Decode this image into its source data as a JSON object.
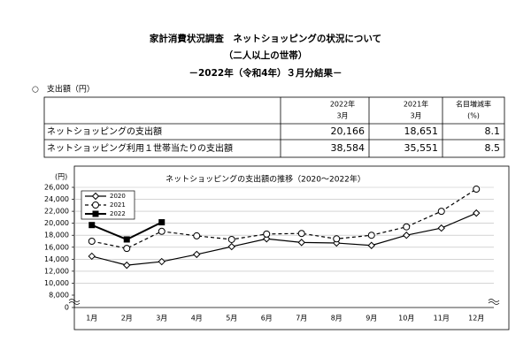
{
  "header": {
    "title": "家計消費状況調査　ネットショッピングの状況について",
    "subtitle": "（二人以上の世帯）",
    "period": "－2022年（令和4年）３月分結果－"
  },
  "section_label": "○　支出額（円）",
  "table": {
    "columns": [
      {
        "year": "2022年",
        "month": "3月"
      },
      {
        "year": "2021年",
        "month": "3月"
      },
      {
        "label": "名目増減率",
        "unit": "(%)"
      }
    ],
    "rows": [
      [
        "ネットショッピングの支出額",
        "20,166",
        "18,651",
        "8.1"
      ],
      [
        "ネットショッピング利用１世帯当たりの支出額",
        "38,584",
        "35,551",
        "8.5"
      ]
    ]
  },
  "chart_data": {
    "type": "line",
    "title": "ネットショッピングの支出額の推移（2020～2022年）",
    "y_unit": "(円)",
    "categories": [
      "1月",
      "2月",
      "3月",
      "4月",
      "5月",
      "6月",
      "7月",
      "8月",
      "9月",
      "10月",
      "11月",
      "12月"
    ],
    "series": [
      {
        "name": "2020",
        "color": "#000000",
        "dash": false,
        "marker": "diamond",
        "values": [
          14500,
          13000,
          13600,
          14800,
          16100,
          17400,
          16800,
          16700,
          16300,
          18000,
          19200,
          21700
        ]
      },
      {
        "name": "2021",
        "color": "#000000",
        "dash": true,
        "marker": "circle",
        "values": [
          17000,
          15800,
          18651,
          17900,
          17300,
          18200,
          18300,
          17400,
          18000,
          19400,
          22000,
          25700
        ]
      },
      {
        "name": "2022",
        "color": "#000000",
        "dash": false,
        "marker": "square",
        "values": [
          19700,
          17300,
          20166,
          null,
          null,
          null,
          null,
          null,
          null,
          null,
          null,
          null
        ]
      }
    ],
    "ylim": [
      8000,
      26000
    ],
    "axis_break": true,
    "yticks": [
      0,
      {
        "value": 8000,
        "label": "8,000"
      },
      {
        "value": 10000,
        "label": "10,000"
      },
      {
        "value": 12000,
        "label": "12,000"
      },
      {
        "value": 14000,
        "label": "14,000"
      },
      {
        "value": 16000,
        "label": "16,000"
      },
      {
        "value": 18000,
        "label": "18,000"
      },
      {
        "value": 20000,
        "label": "20,000"
      },
      {
        "value": 22000,
        "label": "22,000"
      },
      {
        "value": 24000,
        "label": "24,000"
      },
      {
        "value": 26000,
        "label": "26,000"
      }
    ],
    "grid": true,
    "legend": "upper-left"
  }
}
